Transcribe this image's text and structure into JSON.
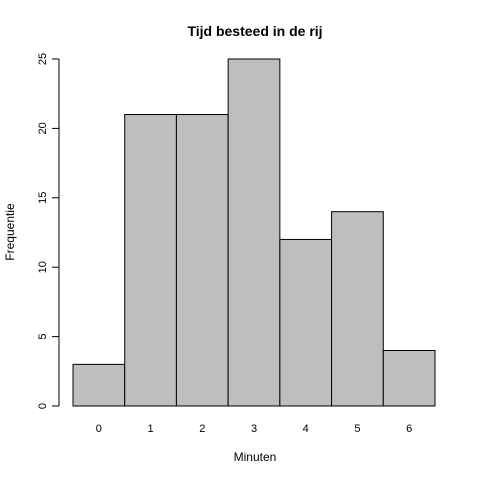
{
  "chart_data": {
    "type": "bar",
    "title": "Tijd besteed in de rij",
    "xlabel": "Minuten",
    "ylabel": "Frequentie",
    "categories": [
      "0",
      "1",
      "2",
      "3",
      "4",
      "5",
      "6"
    ],
    "values": [
      3,
      21,
      21,
      25,
      12,
      14,
      4
    ],
    "ylim": [
      0,
      25
    ],
    "yticks": [
      0,
      5,
      10,
      15,
      20,
      25
    ],
    "grid": false,
    "bar_color": "#bebebe",
    "border_color": "#000000"
  }
}
